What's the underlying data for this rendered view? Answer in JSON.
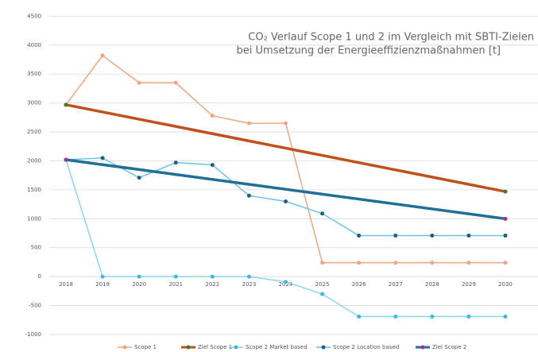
{
  "chart_data": {
    "type": "line",
    "title": [
      "CO₂ Verlauf Scope 1 und 2 im Vergleich mit SBTI-Zielen",
      "bei Umsetzung der Energieeffizienzmaßnahmen [t]"
    ],
    "categories": [
      "2018",
      "2019",
      "2020",
      "2021",
      "2022",
      "2023",
      "2024",
      "2025",
      "2026",
      "2027",
      "2028",
      "2029",
      "2030"
    ],
    "ylim": [
      -1000,
      4500
    ],
    "yticks": [
      -1000,
      -500,
      0,
      500,
      1000,
      1500,
      2000,
      2500,
      3000,
      3500,
      4000,
      4500
    ],
    "grid": true,
    "legend": "bottom",
    "series": [
      {
        "name": "Scope 1",
        "color": "#f4a47c",
        "marker_color": "#f4a47c",
        "markers": "all",
        "values": [
          2970,
          3820,
          3350,
          3350,
          2780,
          2650,
          2650,
          240,
          240,
          240,
          240,
          240,
          240
        ]
      },
      {
        "name": "Ziel Scope 1",
        "color": "#c0501c",
        "marker_color": "#3a7d2c",
        "markers": "ends",
        "values": [
          2970,
          2845,
          2720,
          2595,
          2470,
          2345,
          2220,
          2095,
          1970,
          1845,
          1720,
          1595,
          1470
        ]
      },
      {
        "name": "Scope 2 Market based",
        "color": "#8ad6ef",
        "marker_color": "#3fb8e0",
        "markers": "all",
        "values": [
          2020,
          0,
          0,
          0,
          0,
          0,
          -90,
          -300,
          -690,
          -690,
          -690,
          -690,
          -690
        ]
      },
      {
        "name": "Scope 2 Location based",
        "color": "#6cc3e6",
        "marker_color": "#1f5f80",
        "markers": "all",
        "values": [
          2020,
          2050,
          1710,
          1970,
          1930,
          1400,
          1300,
          1090,
          710,
          710,
          710,
          710,
          710
        ]
      },
      {
        "name": "Ziel Scope 2",
        "color": "#1f6f96",
        "marker_color": "#a0309c",
        "markers": "ends",
        "values": [
          2020,
          1935,
          1850,
          1765,
          1680,
          1595,
          1510,
          1425,
          1340,
          1255,
          1170,
          1085,
          1000
        ]
      }
    ]
  }
}
